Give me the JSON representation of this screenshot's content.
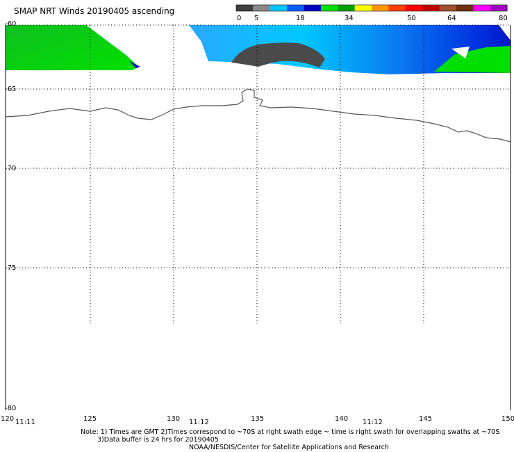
{
  "title": "SMAP NRT Winds 20190405 ascending",
  "colorbar": {
    "colors": [
      "#404040",
      "#8a8a8a",
      "#00c8ff",
      "#0060ff",
      "#0000c0",
      "#00e000",
      "#00a000",
      "#ffff00",
      "#ff9900",
      "#ff4000",
      "#ff0000",
      "#c00000",
      "#a05030",
      "#703010",
      "#ff00ff",
      "#a000c0"
    ],
    "labels": [
      "0",
      "5",
      "18",
      "34",
      "50",
      "64",
      "80"
    ]
  },
  "lat_labels": [
    "-60",
    "-65",
    "-70",
    "-75",
    "-80"
  ],
  "lon_labels": [
    "120",
    "125",
    "130",
    "135",
    "140",
    "145",
    "150"
  ],
  "time_labels": [
    "11:11",
    "11:12",
    "11:12"
  ],
  "notes": {
    "line1": "Note: 1) Times are GMT 2)Times correspond to ~70S at right swath edge ~ time is right swath for overlapping swaths at ~70S",
    "line2": "3)Data buffer is 24 hrs for 20190405",
    "line3": "NOAA/NESDIS/Center for Satellite Applications and Research"
  }
}
